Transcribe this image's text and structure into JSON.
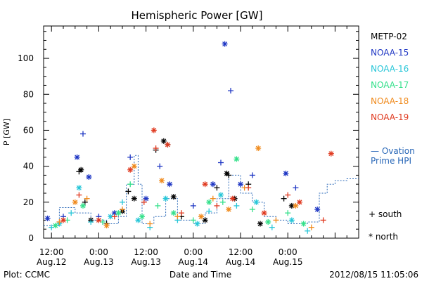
{
  "chart_data": {
    "type": "scatter",
    "title": "Hemispheric Power [GW]",
    "ylabel": "P [GW]",
    "xlabel": "Date and Time",
    "ylim": [
      0,
      118
    ],
    "y_ticks": [
      "0",
      "20",
      "40",
      "60",
      "80",
      "100"
    ],
    "xlim": [
      "2012-08-12T10:00",
      "2012-08-15T18:00"
    ],
    "x_ticks": [
      {
        "time": "12:00",
        "date": "Aug.12",
        "x": "2012-08-12T12:00"
      },
      {
        "time": "0:00",
        "date": "Aug.13",
        "x": "2012-08-13T00:00"
      },
      {
        "time": "12:00",
        "date": "Aug.13",
        "x": "2012-08-13T12:00"
      },
      {
        "time": "0:00",
        "date": "Aug.14",
        "x": "2012-08-14T00:00"
      },
      {
        "time": "12:00",
        "date": "Aug.14",
        "x": "2012-08-14T12:00"
      },
      {
        "time": "0:00",
        "date": "Aug.15",
        "x": "2012-08-15T00:00"
      }
    ],
    "footer_left": "Plot: CCMC",
    "footer_right": "2012/08/15 11:05:06",
    "series": [
      {
        "name": "METP-02",
        "color": "#000000",
        "points": [
          [
            "2012-08-12T19:00",
            37
          ],
          [
            "2012-08-12T19:30",
            38
          ],
          [
            "2012-08-12T20:30",
            20
          ],
          [
            "2012-08-12T22:00",
            10
          ],
          [
            "2012-08-13T02:00",
            8
          ],
          [
            "2012-08-13T06:00",
            15
          ],
          [
            "2012-08-13T07:30",
            26
          ],
          [
            "2012-08-13T09:00",
            22
          ],
          [
            "2012-08-13T14:30",
            49
          ],
          [
            "2012-08-13T16:30",
            54
          ],
          [
            "2012-08-13T17:30",
            52
          ],
          [
            "2012-08-13T19:00",
            23
          ],
          [
            "2012-08-13T21:00",
            12
          ],
          [
            "2012-08-14T03:00",
            10
          ],
          [
            "2012-08-14T06:00",
            28
          ],
          [
            "2012-08-14T08:30",
            36
          ],
          [
            "2012-08-14T09:00",
            35
          ],
          [
            "2012-08-14T10:30",
            22
          ],
          [
            "2012-08-14T14:00",
            30
          ],
          [
            "2012-08-14T17:00",
            8
          ],
          [
            "2012-08-14T23:00",
            22
          ],
          [
            "2012-08-15T01:00",
            18
          ]
        ]
      },
      {
        "name": "NOAA-15",
        "color": "#1f37c4",
        "points": [
          [
            "2012-08-12T11:00",
            11
          ],
          [
            "2012-08-12T15:00",
            12
          ],
          [
            "2012-08-12T18:30",
            45
          ],
          [
            "2012-08-12T20:00",
            58
          ],
          [
            "2012-08-12T21:30",
            34
          ],
          [
            "2012-08-13T00:00",
            12
          ],
          [
            "2012-08-13T04:00",
            14
          ],
          [
            "2012-08-13T08:00",
            45
          ],
          [
            "2012-08-13T12:00",
            22
          ],
          [
            "2012-08-13T15:30",
            40
          ],
          [
            "2012-08-13T18:00",
            30
          ],
          [
            "2012-08-14T00:00",
            18
          ],
          [
            "2012-08-14T05:00",
            30
          ],
          [
            "2012-08-14T07:00",
            42
          ],
          [
            "2012-08-14T08:00",
            108
          ],
          [
            "2012-08-14T09:30",
            82
          ],
          [
            "2012-08-14T12:00",
            30
          ],
          [
            "2012-08-14T15:00",
            35
          ],
          [
            "2012-08-14T23:30",
            36
          ],
          [
            "2012-08-15T02:00",
            28
          ],
          [
            "2012-08-15T07:30",
            16
          ]
        ]
      },
      {
        "name": "NOAA-16",
        "color": "#27c6d8",
        "points": [
          [
            "2012-08-12T12:00",
            6
          ],
          [
            "2012-08-12T14:00",
            8
          ],
          [
            "2012-08-12T17:00",
            14
          ],
          [
            "2012-08-12T19:00",
            28
          ],
          [
            "2012-08-12T22:00",
            9
          ],
          [
            "2012-08-13T03:00",
            12
          ],
          [
            "2012-08-13T06:00",
            20
          ],
          [
            "2012-08-13T10:00",
            10
          ],
          [
            "2012-08-13T13:00",
            6
          ],
          [
            "2012-08-13T17:00",
            22
          ],
          [
            "2012-08-13T20:00",
            10
          ],
          [
            "2012-08-14T01:00",
            8
          ],
          [
            "2012-08-14T04:00",
            15
          ],
          [
            "2012-08-14T07:00",
            24
          ],
          [
            "2012-08-14T11:00",
            18
          ],
          [
            "2012-08-14T16:00",
            20
          ],
          [
            "2012-08-14T20:00",
            6
          ],
          [
            "2012-08-15T01:00",
            10
          ],
          [
            "2012-08-15T05:00",
            4
          ]
        ]
      },
      {
        "name": "NOAA-17",
        "color": "#33e08a",
        "points": [
          [
            "2012-08-12T13:00",
            7
          ],
          [
            "2012-08-12T16:00",
            10
          ],
          [
            "2012-08-12T20:00",
            18
          ],
          [
            "2012-08-13T01:00",
            9
          ],
          [
            "2012-08-13T05:00",
            14
          ],
          [
            "2012-08-13T08:00",
            30
          ],
          [
            "2012-08-13T11:00",
            12
          ],
          [
            "2012-08-13T15:00",
            18
          ],
          [
            "2012-08-13T19:00",
            14
          ],
          [
            "2012-08-14T00:00",
            10
          ],
          [
            "2012-08-14T04:00",
            20
          ],
          [
            "2012-08-14T07:30",
            20
          ],
          [
            "2012-08-14T11:00",
            44
          ],
          [
            "2012-08-14T15:00",
            16
          ],
          [
            "2012-08-14T19:00",
            9
          ],
          [
            "2012-08-15T00:00",
            14
          ],
          [
            "2012-08-15T04:00",
            8
          ]
        ]
      },
      {
        "name": "NOAA-18",
        "color": "#f08a1c",
        "points": [
          [
            "2012-08-12T14:00",
            9
          ],
          [
            "2012-08-12T18:00",
            20
          ],
          [
            "2012-08-12T21:00",
            22
          ],
          [
            "2012-08-13T02:00",
            7
          ],
          [
            "2012-08-13T06:00",
            16
          ],
          [
            "2012-08-13T09:00",
            40
          ],
          [
            "2012-08-13T13:00",
            8
          ],
          [
            "2012-08-13T16:00",
            32
          ],
          [
            "2012-08-13T20:00",
            12
          ],
          [
            "2012-08-14T02:00",
            12
          ],
          [
            "2012-08-14T05:00",
            22
          ],
          [
            "2012-08-14T09:00",
            16
          ],
          [
            "2012-08-14T13:00",
            28
          ],
          [
            "2012-08-14T16:30",
            50
          ],
          [
            "2012-08-14T21:00",
            10
          ],
          [
            "2012-08-15T02:00",
            18
          ],
          [
            "2012-08-15T06:00",
            6
          ]
        ]
      },
      {
        "name": "NOAA-19",
        "color": "#e0391f",
        "points": [
          [
            "2012-08-12T15:00",
            10
          ],
          [
            "2012-08-12T19:00",
            24
          ],
          [
            "2012-08-13T00:00",
            10
          ],
          [
            "2012-08-13T04:00",
            12
          ],
          [
            "2012-08-13T08:00",
            38
          ],
          [
            "2012-08-13T11:30",
            20
          ],
          [
            "2012-08-13T14:00",
            60
          ],
          [
            "2012-08-13T14:30",
            50
          ],
          [
            "2012-08-13T17:30",
            52
          ],
          [
            "2012-08-13T21:00",
            14
          ],
          [
            "2012-08-14T03:00",
            30
          ],
          [
            "2012-08-14T06:00",
            18
          ],
          [
            "2012-08-14T10:00",
            22
          ],
          [
            "2012-08-14T14:00",
            28
          ],
          [
            "2012-08-14T18:00",
            14
          ],
          [
            "2012-08-15T00:00",
            24
          ],
          [
            "2012-08-15T03:00",
            20
          ],
          [
            "2012-08-15T09:00",
            10
          ],
          [
            "2012-08-15T11:00",
            47
          ]
        ]
      }
    ],
    "ovation": {
      "name": "Ovation Prime HPI",
      "label_lines": [
        "— Ovation",
        "Prime HPI"
      ],
      "color": "#2a68b8",
      "steps": [
        [
          "2012-08-12T10:00",
          7
        ],
        [
          "2012-08-12T14:00",
          17
        ],
        [
          "2012-08-12T18:00",
          14
        ],
        [
          "2012-08-12T22:00",
          10
        ],
        [
          "2012-08-13T02:00",
          8
        ],
        [
          "2012-08-13T05:00",
          12
        ],
        [
          "2012-08-13T07:00",
          30
        ],
        [
          "2012-08-13T09:00",
          46
        ],
        [
          "2012-08-13T10:00",
          30
        ],
        [
          "2012-08-13T11:00",
          8
        ],
        [
          "2012-08-13T14:00",
          12
        ],
        [
          "2012-08-13T17:00",
          22
        ],
        [
          "2012-08-13T20:00",
          10
        ],
        [
          "2012-08-14T00:00",
          8
        ],
        [
          "2012-08-14T03:00",
          14
        ],
        [
          "2012-08-14T06:00",
          22
        ],
        [
          "2012-08-14T09:00",
          35
        ],
        [
          "2012-08-14T12:00",
          25
        ],
        [
          "2012-08-14T15:00",
          20
        ],
        [
          "2012-08-14T18:00",
          12
        ],
        [
          "2012-08-14T21:00",
          10
        ],
        [
          "2012-08-15T00:00",
          8
        ],
        [
          "2012-08-15T05:00",
          9
        ],
        [
          "2012-08-15T08:00",
          25
        ],
        [
          "2012-08-15T10:00",
          30
        ],
        [
          "2012-08-15T12:00",
          32
        ],
        [
          "2012-08-15T15:00",
          33
        ]
      ]
    },
    "symbol_legend": [
      {
        "symbol": "+",
        "label": "south"
      },
      {
        "symbol": "*",
        "label": "north"
      }
    ]
  }
}
